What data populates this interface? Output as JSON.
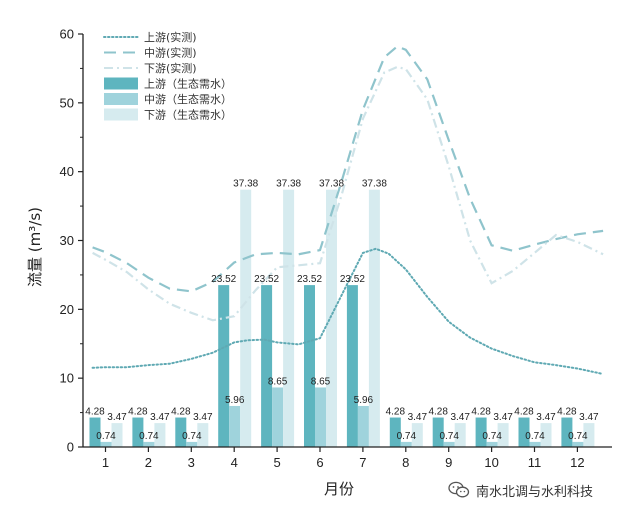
{
  "chart_data": {
    "type": "bar",
    "xlabel": "月份",
    "ylabel": "流量 (m³/s)",
    "categories": [
      "1",
      "2",
      "3",
      "4",
      "5",
      "6",
      "7",
      "8",
      "9",
      "10",
      "11",
      "12"
    ],
    "ylim": [
      0,
      60
    ],
    "yticks": [
      0,
      10,
      20,
      30,
      40,
      50,
      60
    ],
    "grid": false,
    "legend_position": "top-left",
    "series": [
      {
        "name": "上游（生态需水）",
        "kind": "bar",
        "color": "#5eb5bf",
        "values": [
          4.28,
          4.28,
          4.28,
          23.52,
          23.52,
          23.52,
          23.52,
          4.28,
          4.28,
          4.28,
          4.28,
          4.28
        ],
        "labels": [
          "4.28",
          "4.28",
          "4.28",
          "23.52",
          "23.52",
          "23.52",
          "23.52",
          "4.28",
          "4.28",
          "4.28",
          "4.28",
          "4.28"
        ]
      },
      {
        "name": "中游（生态需水）",
        "kind": "bar",
        "color": "#9fd3dc",
        "values": [
          0.74,
          0.74,
          0.74,
          5.96,
          8.65,
          8.65,
          5.96,
          0.74,
          0.74,
          0.74,
          0.74,
          0.74
        ],
        "labels": [
          "0.74",
          "0.74",
          "0.74",
          "5.96",
          "8.65",
          "8.65",
          "5.96",
          "0.74",
          "0.74",
          "0.74",
          "0.74",
          "0.74"
        ]
      },
      {
        "name": "下游（生态需水）",
        "kind": "bar",
        "color": "#d6ebef",
        "values": [
          3.47,
          3.47,
          3.47,
          37.38,
          37.38,
          37.38,
          37.38,
          3.47,
          3.47,
          3.47,
          3.47,
          3.47
        ],
        "labels": [
          "3.47",
          "3.47",
          "3.47",
          "37.38",
          "37.38",
          "37.38",
          "37.38",
          "3.47",
          "3.47",
          "3.47",
          "3.47",
          "3.47"
        ]
      },
      {
        "name": "上游(实测)",
        "kind": "line",
        "style": "dotted",
        "color": "#5fa9b3",
        "x": [
          0.7,
          1,
          1.5,
          2,
          2.5,
          3,
          3.5,
          4,
          4.3,
          4.7,
          5,
          5.5,
          6,
          6.5,
          7,
          7.3,
          7.6,
          8,
          8.5,
          9,
          9.5,
          10,
          10.5,
          11,
          11.5,
          12,
          12.6
        ],
        "y": [
          11.5,
          11.6,
          11.6,
          11.9,
          12.1,
          12.8,
          13.7,
          15.2,
          15.5,
          15.6,
          15.2,
          14.9,
          15.8,
          22.0,
          28.2,
          28.8,
          28.1,
          25.8,
          21.8,
          18.2,
          15.9,
          14.3,
          13.2,
          12.3,
          11.9,
          11.4,
          10.6
        ]
      },
      {
        "name": "中游(实测)",
        "kind": "line",
        "style": "dashed",
        "color": "#8fc4cc",
        "x": [
          0.7,
          1,
          1.5,
          2,
          2.5,
          3,
          3.5,
          4,
          4.5,
          5,
          5.5,
          6,
          6.5,
          7,
          7.5,
          7.8,
          8,
          8.5,
          9,
          9.5,
          10,
          10.5,
          11,
          11.5,
          12,
          12.6
        ],
        "y": [
          29.0,
          28.3,
          26.7,
          24.6,
          23.0,
          22.6,
          24.0,
          26.8,
          28.0,
          28.2,
          28.0,
          28.6,
          38.5,
          49.0,
          56.6,
          58.2,
          57.7,
          53.4,
          44.6,
          36.1,
          29.3,
          28.5,
          29.4,
          30.2,
          30.9,
          31.4
        ]
      },
      {
        "name": "下游(实测)",
        "kind": "line",
        "style": "dashdot",
        "color": "#cfe3e8",
        "x": [
          0.7,
          1,
          1.5,
          2,
          2.5,
          3,
          3.5,
          4,
          4.5,
          5,
          5.5,
          6,
          6.5,
          7,
          7.5,
          7.8,
          8,
          8.5,
          9,
          9.5,
          10,
          10.5,
          11,
          11.5,
          12,
          12.6
        ],
        "y": [
          28.2,
          27.2,
          25.4,
          22.9,
          20.8,
          19.5,
          18.4,
          19.0,
          22.8,
          26.1,
          26.4,
          26.7,
          36.5,
          47.7,
          54.4,
          55.2,
          54.9,
          50.5,
          40.8,
          30.0,
          23.8,
          25.6,
          28.2,
          30.8,
          29.8,
          28.0
        ]
      }
    ]
  },
  "watermark": {
    "text": "南水北调与水利科技",
    "icon": "wechat-icon"
  }
}
